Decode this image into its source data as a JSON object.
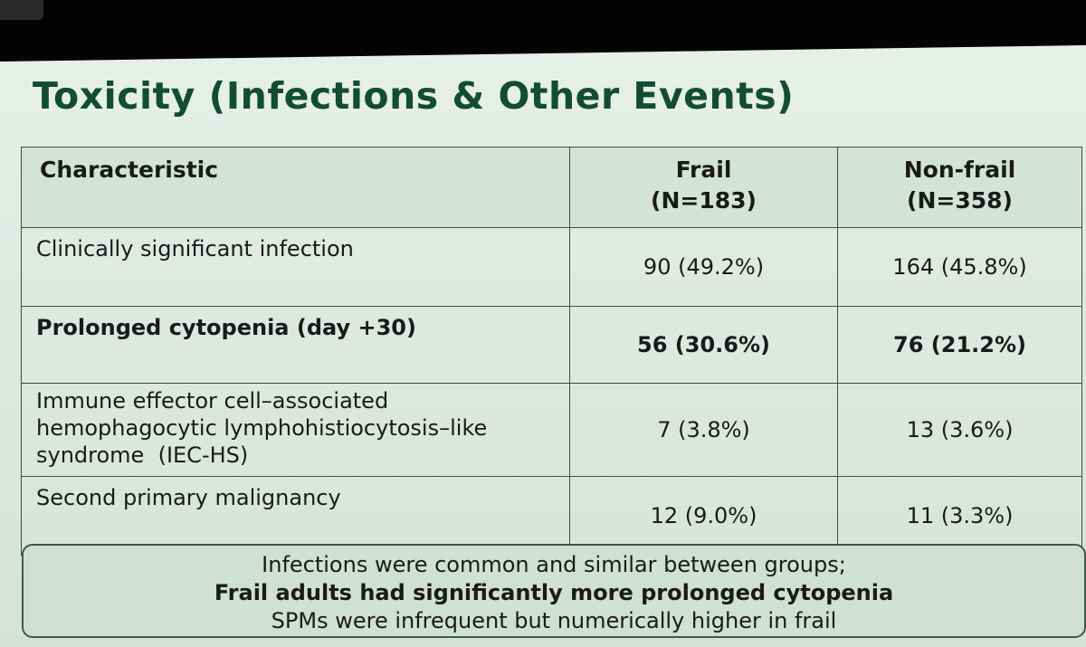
{
  "slide": {
    "title": "Toxicity (Infections & Other Events)"
  },
  "table": {
    "headers": {
      "characteristic": "Characteristic",
      "frail_label": "Frail",
      "frail_n": "(N=183)",
      "nonfrail_label": "Non-frail",
      "nonfrail_n": "(N=358)"
    },
    "rows": [
      {
        "characteristic_lines": [
          "Clinically significant infection"
        ],
        "frail": "90 (49.2%)",
        "nonfrail": "164 (45.8%)",
        "bold": false
      },
      {
        "characteristic_lines": [
          "Prolonged cytopenia (day +30)"
        ],
        "frail": "56 (30.6%)",
        "nonfrail": "76 (21.2%)",
        "bold": true
      },
      {
        "characteristic_lines": [
          "Immune effector cell–associated",
          "hemophagocytic lymphohistiocytosis–like",
          "syndrome  (IEC-HS)"
        ],
        "frail": "7 (3.8%)",
        "nonfrail": "13 (3.6%)",
        "bold": false
      },
      {
        "characteristic_lines": [
          "Second primary malignancy"
        ],
        "frail": "12 (9.0%)",
        "nonfrail": "11 (3.3%)",
        "bold": false
      }
    ]
  },
  "callout": {
    "line1": "Infections were common and similar between groups;",
    "line2": "Frail adults had significantly more prolonged cytopenia",
    "line3": "SPMs were infrequent but numerically higher in frail"
  }
}
